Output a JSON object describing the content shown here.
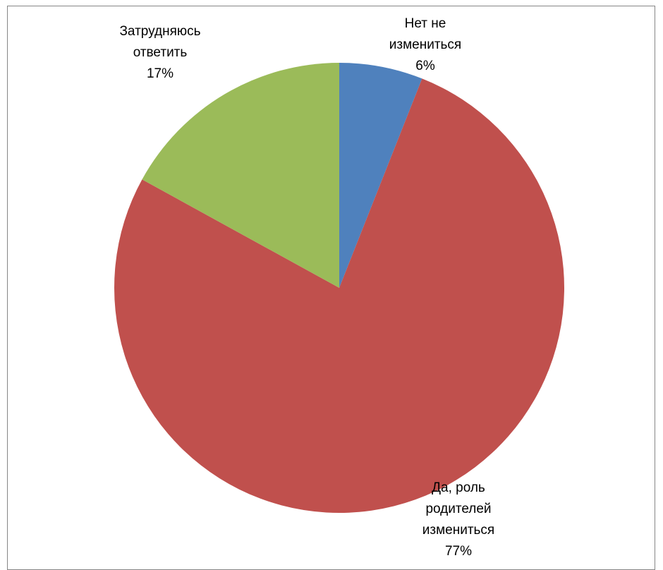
{
  "chart_data": {
    "type": "pie",
    "slices": [
      {
        "label_lines": [
          "Нет не",
          "измениться",
          "6%"
        ],
        "value": 6,
        "color": "#4F81BD"
      },
      {
        "label_lines": [
          "Да, роль",
          "родителей",
          "измениться",
          "77%"
        ],
        "value": 77,
        "color": "#C0504D"
      },
      {
        "label_lines": [
          "Затрудняюсь",
          "ответить",
          "17%"
        ],
        "value": 17,
        "color": "#9BBB59"
      }
    ],
    "start_angle_deg": 0,
    "direction": "clockwise",
    "legend": "none"
  }
}
